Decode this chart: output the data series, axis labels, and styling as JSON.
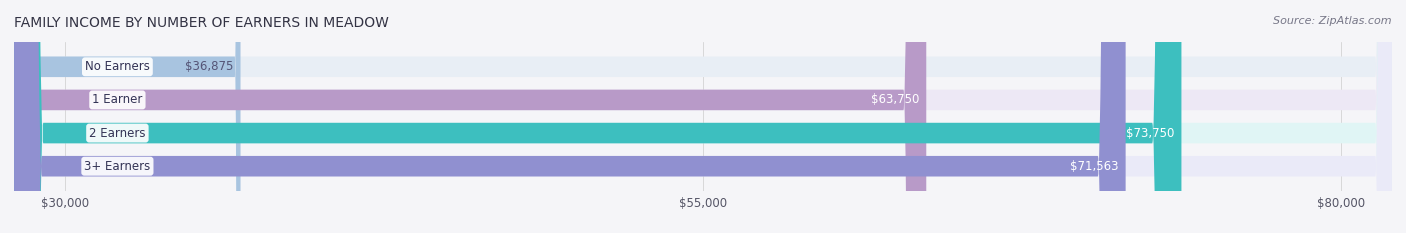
{
  "title": "FAMILY INCOME BY NUMBER OF EARNERS IN MEADOW",
  "source": "Source: ZipAtlas.com",
  "categories": [
    "No Earners",
    "1 Earner",
    "2 Earners",
    "3+ Earners"
  ],
  "values": [
    36875,
    63750,
    73750,
    71563
  ],
  "bar_colors": [
    "#a8c4e0",
    "#b89ac8",
    "#3dbfbf",
    "#9090d0"
  ],
  "bar_bg_colors": [
    "#e8eef5",
    "#ede8f5",
    "#e0f5f5",
    "#eaeaf8"
  ],
  "label_colors": [
    "#555577",
    "#ffffff",
    "#ffffff",
    "#ffffff"
  ],
  "xmin": 28000,
  "xmax": 82000,
  "xticks": [
    30000,
    55000,
    80000
  ],
  "xtick_labels": [
    "$30,000",
    "$55,000",
    "$80,000"
  ],
  "title_fontsize": 10,
  "source_fontsize": 8,
  "bar_height": 0.62,
  "bar_label_fontsize": 8.5,
  "category_fontsize": 8.5
}
